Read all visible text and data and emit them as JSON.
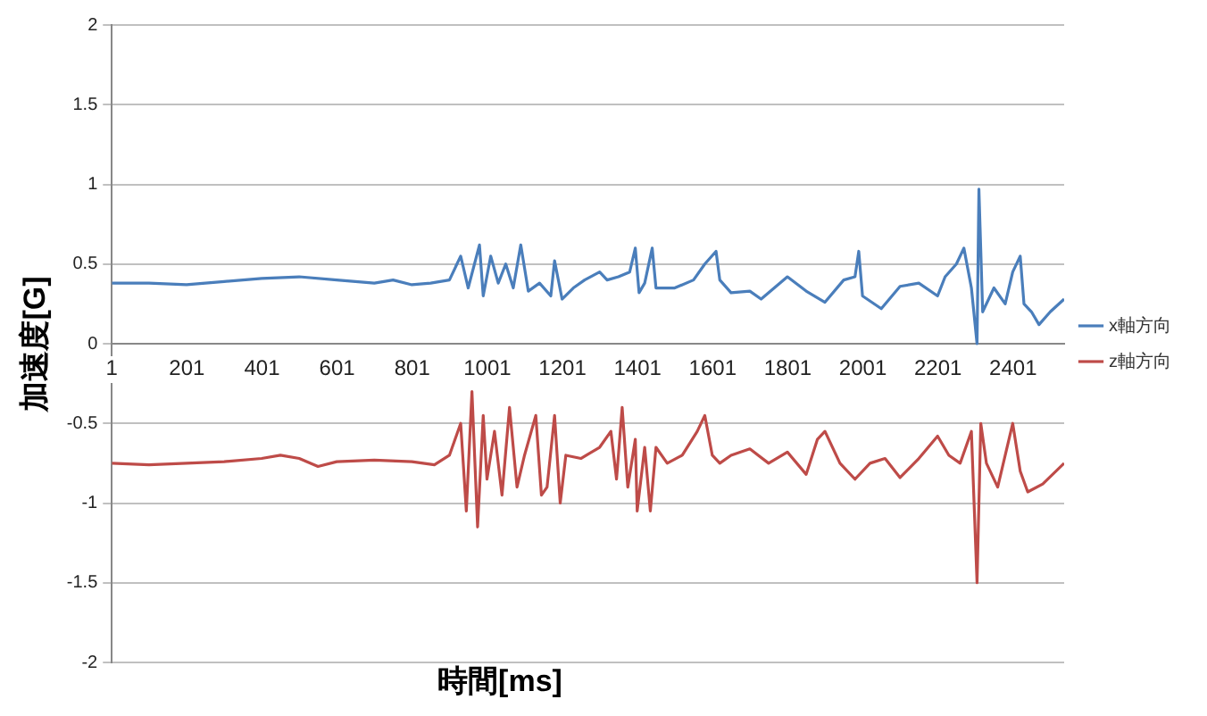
{
  "chart_data": {
    "type": "line",
    "xlabel": "時間[ms]",
    "ylabel": "加速度[G]",
    "xlim": [
      1,
      2537
    ],
    "xticks": [
      1,
      201,
      401,
      601,
      801,
      1001,
      1201,
      1401,
      1601,
      1801,
      2001,
      2201,
      2401
    ],
    "ylim": [
      -2,
      2
    ],
    "yticks": [
      -2,
      -1.5,
      -1,
      -0.5,
      0,
      0.5,
      1,
      1.5,
      2
    ],
    "grid": "y",
    "legend": "right",
    "marker": "none",
    "series": [
      {
        "name": "x軸方向",
        "color": "#4a7ebb",
        "x": [
          1,
          100,
          200,
          300,
          400,
          500,
          600,
          700,
          750,
          800,
          850,
          900,
          930,
          950,
          980,
          990,
          1010,
          1030,
          1050,
          1070,
          1090,
          1110,
          1140,
          1170,
          1180,
          1200,
          1230,
          1260,
          1300,
          1320,
          1350,
          1380,
          1395,
          1405,
          1420,
          1440,
          1450,
          1500,
          1550,
          1580,
          1610,
          1620,
          1650,
          1700,
          1730,
          1800,
          1850,
          1900,
          1950,
          1980,
          1990,
          2000,
          2050,
          2100,
          2150,
          2200,
          2220,
          2250,
          2270,
          2290,
          2305,
          2310,
          2320,
          2350,
          2380,
          2400,
          2420,
          2430,
          2450,
          2470,
          2500,
          2537
        ],
        "values": [
          0.38,
          0.38,
          0.37,
          0.39,
          0.41,
          0.42,
          0.4,
          0.38,
          0.4,
          0.37,
          0.38,
          0.4,
          0.55,
          0.35,
          0.62,
          0.3,
          0.55,
          0.38,
          0.5,
          0.35,
          0.62,
          0.33,
          0.38,
          0.3,
          0.52,
          0.28,
          0.35,
          0.4,
          0.45,
          0.4,
          0.42,
          0.45,
          0.6,
          0.32,
          0.38,
          0.6,
          0.35,
          0.35,
          0.4,
          0.5,
          0.58,
          0.4,
          0.32,
          0.33,
          0.28,
          0.42,
          0.33,
          0.26,
          0.4,
          0.42,
          0.58,
          0.3,
          0.22,
          0.36,
          0.38,
          0.3,
          0.42,
          0.5,
          0.6,
          0.35,
          0,
          0.97,
          0.2,
          0.35,
          0.25,
          0.45,
          0.55,
          0.25,
          0.2,
          0.12,
          0.2,
          0.28
        ]
      },
      {
        "name": "z軸方向",
        "color": "#be4b48",
        "x": [
          1,
          100,
          200,
          300,
          400,
          450,
          500,
          550,
          600,
          700,
          800,
          860,
          900,
          930,
          945,
          960,
          975,
          990,
          1000,
          1020,
          1040,
          1060,
          1080,
          1100,
          1130,
          1145,
          1160,
          1180,
          1195,
          1210,
          1250,
          1300,
          1330,
          1345,
          1360,
          1375,
          1395,
          1400,
          1420,
          1435,
          1450,
          1480,
          1520,
          1560,
          1580,
          1600,
          1620,
          1650,
          1700,
          1750,
          1800,
          1850,
          1880,
          1900,
          1940,
          1980,
          2020,
          2060,
          2100,
          2150,
          2200,
          2230,
          2260,
          2290,
          2305,
          2315,
          2330,
          2360,
          2390,
          2400,
          2420,
          2440,
          2480,
          2537
        ],
        "values": [
          -0.75,
          -0.76,
          -0.75,
          -0.74,
          -0.72,
          -0.7,
          -0.72,
          -0.77,
          -0.74,
          -0.73,
          -0.74,
          -0.76,
          -0.7,
          -0.5,
          -1.05,
          -0.3,
          -1.15,
          -0.45,
          -0.85,
          -0.55,
          -0.95,
          -0.4,
          -0.9,
          -0.7,
          -0.45,
          -0.95,
          -0.9,
          -0.45,
          -1,
          -0.7,
          -0.72,
          -0.65,
          -0.55,
          -0.85,
          -0.4,
          -0.9,
          -0.6,
          -1.05,
          -0.65,
          -1.05,
          -0.65,
          -0.75,
          -0.7,
          -0.55,
          -0.45,
          -0.7,
          -0.75,
          -0.7,
          -0.66,
          -0.75,
          -0.68,
          -0.82,
          -0.6,
          -0.55,
          -0.75,
          -0.85,
          -0.75,
          -0.72,
          -0.84,
          -0.72,
          -0.58,
          -0.7,
          -0.75,
          -0.55,
          -1.5,
          -0.5,
          -0.75,
          -0.9,
          -0.6,
          -0.5,
          -0.8,
          -0.93,
          -0.88,
          -0.75
        ]
      }
    ]
  }
}
